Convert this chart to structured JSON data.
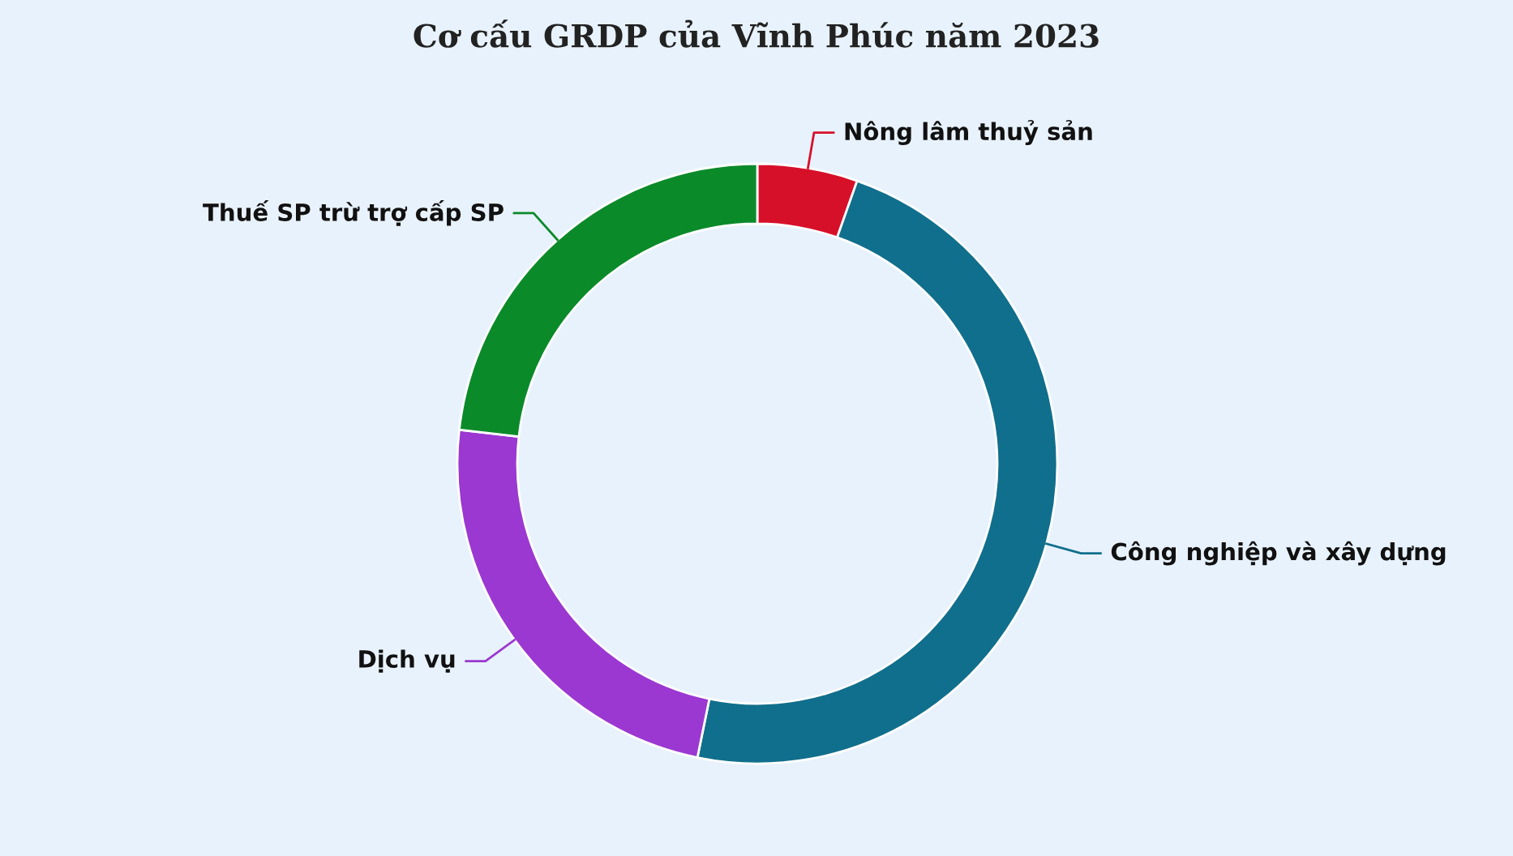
{
  "chart_data": {
    "type": "donut",
    "title": "Cơ cấu GRDP của Vĩnh Phúc năm 2023",
    "categories": [
      "Nông lâm thuỷ sản",
      "Công nghiệp và xây dựng",
      "Dịch vụ",
      "Thuế SP trừ trợ cấp SP"
    ],
    "values": [
      5.4,
      47.8,
      23.6,
      23.2
    ],
    "colors": [
      "#d7102a",
      "#106f8c",
      "#9b38d1",
      "#0b8a2a"
    ],
    "legend": false
  }
}
